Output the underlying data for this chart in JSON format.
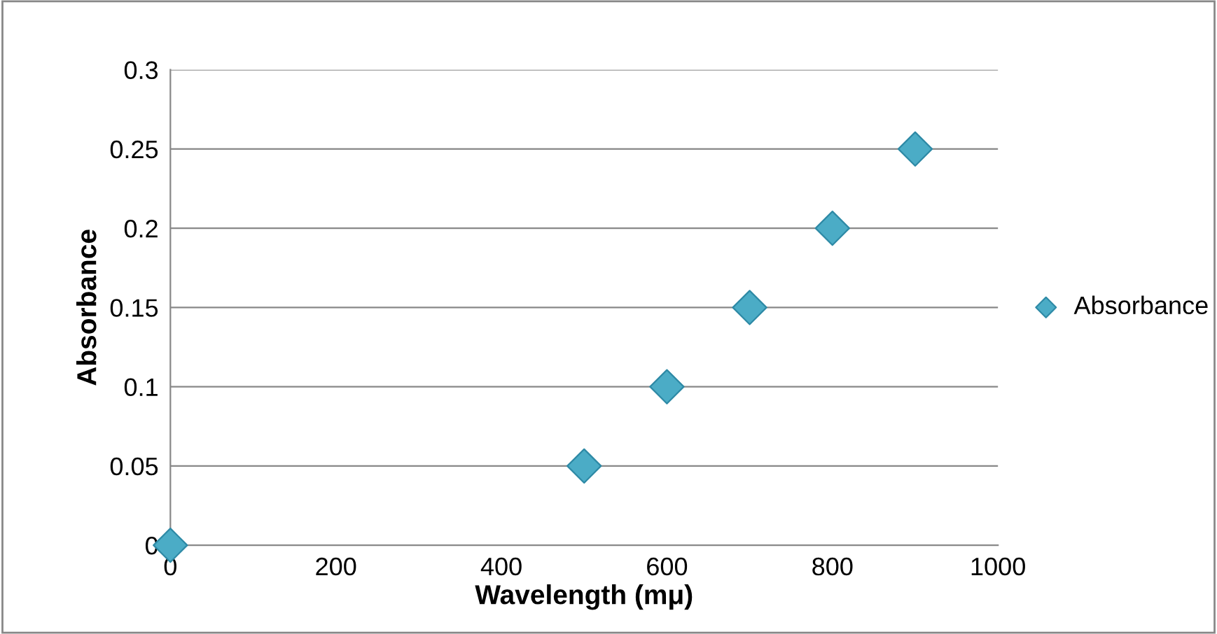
{
  "chart_data": {
    "type": "scatter",
    "xlabel": "Wavelength (mμ)",
    "ylabel": "Absorbance",
    "x": [
      0,
      500,
      600,
      700,
      800,
      900
    ],
    "series": [
      {
        "name": "Absorbance",
        "color": "#4bacc6",
        "values": [
          0,
          0.05,
          0.1,
          0.15,
          0.2,
          0.25
        ]
      }
    ],
    "xlim": [
      0,
      1000
    ],
    "xticks": [
      0,
      200,
      400,
      600,
      800,
      1000
    ],
    "ylim": [
      0,
      0.3
    ],
    "yticks": [
      0,
      0.05,
      0.1,
      0.15,
      0.2,
      0.25,
      0.3
    ],
    "grid": "y",
    "legend": "right",
    "marker": "diamond"
  }
}
